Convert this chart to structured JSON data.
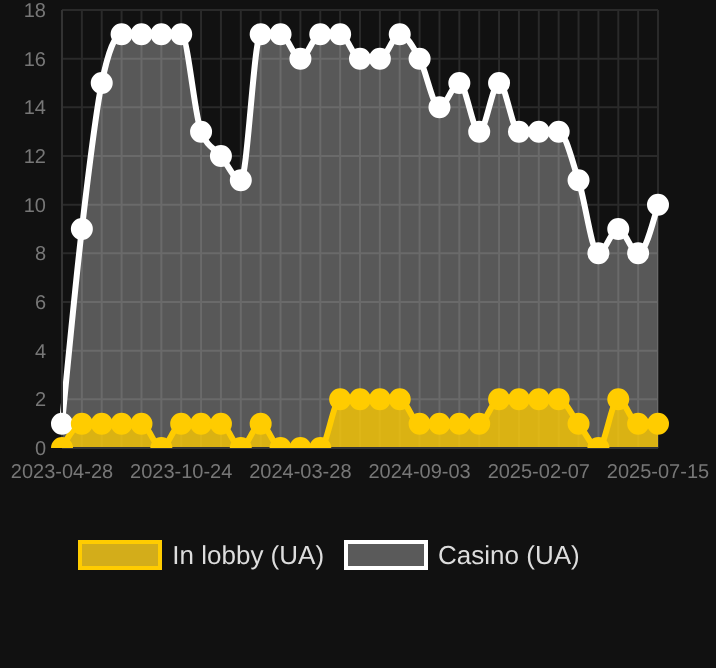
{
  "chart_data": {
    "type": "area",
    "categories": [
      "2023-04-28",
      null,
      null,
      null,
      null,
      null,
      "2023-10-24",
      null,
      null,
      null,
      null,
      null,
      "2024-03-28",
      null,
      null,
      null,
      null,
      null,
      "2024-09-03",
      null,
      null,
      null,
      null,
      null,
      "2025-02-07",
      null,
      null,
      null,
      null,
      null,
      "2025-07-15"
    ],
    "series": [
      {
        "name": "Casino (UA)",
        "color": "#ffffff",
        "values": [
          1,
          9,
          15,
          17,
          17,
          17,
          17,
          13,
          12,
          11,
          17,
          17,
          16,
          17,
          17,
          16,
          16,
          17,
          16,
          14,
          15,
          13,
          15,
          13,
          13,
          13,
          11,
          8,
          9,
          8,
          10
        ]
      },
      {
        "name": "In lobby (UA)",
        "color": "#ffcc00",
        "values": [
          0,
          1,
          1,
          1,
          1,
          0,
          1,
          1,
          1,
          0,
          1,
          0,
          0,
          0,
          2,
          2,
          2,
          2,
          1,
          1,
          1,
          1,
          2,
          2,
          2,
          2,
          1,
          0,
          2,
          1,
          1
        ]
      }
    ],
    "ylim": [
      0,
      18
    ],
    "yticks": [
      0,
      2,
      4,
      6,
      8,
      10,
      12,
      14,
      16,
      18
    ],
    "grid": true,
    "legend": "bottom",
    "marker": "circle",
    "line_style": "solid"
  }
}
